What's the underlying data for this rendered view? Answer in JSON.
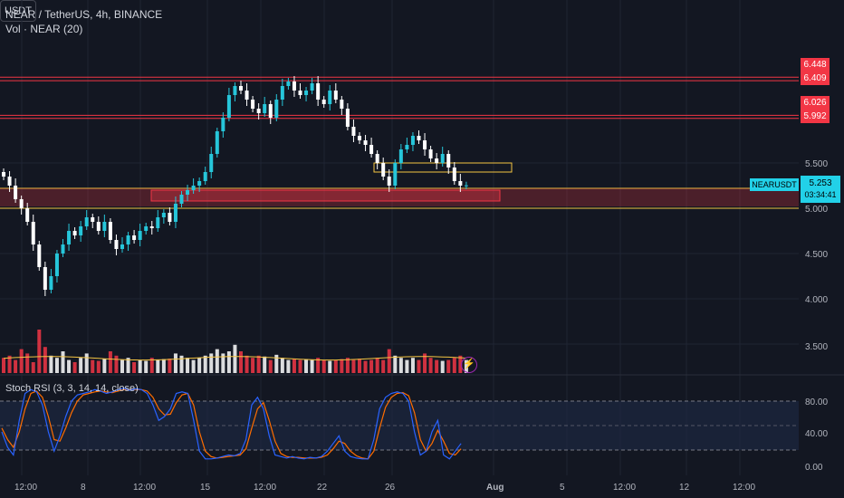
{
  "header": {
    "title": "NEAR / TetherUS, 4h, BINANCE",
    "volume_indicator": "Vol · NEAR (20)",
    "currency_button": "USDT"
  },
  "price_axis": {
    "ticks": [
      "5.500",
      "5.000",
      "4.500",
      "4.000",
      "3.500"
    ],
    "level_tags": [
      "6.448",
      "6.409",
      "6.026",
      "5.992"
    ]
  },
  "last_price": {
    "symbol": "NEARUSDT",
    "price": "5.253",
    "countdown": "03:34:41"
  },
  "stoch_rsi": {
    "label": "Stoch RSI (3, 3, 14, 14, close)",
    "ticks": [
      "80.00",
      "40.00",
      "0.00"
    ]
  },
  "time_axis": {
    "labels": [
      "12:00",
      "8",
      "12:00",
      "15",
      "12:00",
      "22",
      "26",
      "Aug",
      "5",
      "12:00",
      "12",
      "12:00"
    ]
  },
  "colors": {
    "background": "#131722",
    "up": "#26c6da",
    "down": "#ffffff",
    "resistance": "#f23645",
    "zone_yellow": "#f5c542",
    "stoch_k": "#2962ff",
    "stoch_d": "#ff6d00",
    "last_price": "#22d1e8"
  },
  "chart_data": [
    {
      "type": "candlestick",
      "title": "NEAR / TetherUS, 4h, BINANCE",
      "x_labels": [
        "12:00",
        "8",
        "12:00",
        "15",
        "12:00",
        "22",
        "26",
        "Aug",
        "5",
        "12:00",
        "12",
        "12:00"
      ],
      "ylim": [
        3.2,
        6.9
      ],
      "y_ticks": [
        3.5,
        4.0,
        4.5,
        5.0,
        5.5
      ],
      "horizontal_levels": [
        6.448,
        6.409,
        6.026,
        5.992,
        5.22,
        5.0
      ],
      "zones": [
        {
          "low": 5.02,
          "high": 5.22,
          "color": "red"
        },
        {
          "low": 5.08,
          "high": 5.2,
          "color": "red"
        },
        {
          "low": 5.4,
          "high": 5.5,
          "color": "yellow"
        }
      ],
      "close_series": [
        5.35,
        5.25,
        5.1,
        5.0,
        4.85,
        4.6,
        4.35,
        4.1,
        4.25,
        4.5,
        4.6,
        4.75,
        4.7,
        4.8,
        4.9,
        4.85,
        4.75,
        4.85,
        4.65,
        4.55,
        4.6,
        4.7,
        4.65,
        4.75,
        4.8,
        4.78,
        4.9,
        4.95,
        4.85,
        5.05,
        5.15,
        5.2,
        5.25,
        5.3,
        5.4,
        5.6,
        5.85,
        6.0,
        6.25,
        6.35,
        6.3,
        6.2,
        6.1,
        6.05,
        6.15,
        6.0,
        6.2,
        6.35,
        6.4,
        6.3,
        6.25,
        6.3,
        6.38,
        6.2,
        6.15,
        6.3,
        6.2,
        6.1,
        5.9,
        5.8,
        5.75,
        5.7,
        5.6,
        5.5,
        5.35,
        5.25,
        5.5,
        5.65,
        5.7,
        5.8,
        5.75,
        5.65,
        5.55,
        5.5,
        5.6,
        5.45,
        5.3,
        5.25,
        5.253
      ],
      "last_price": 5.253
    },
    {
      "type": "bar",
      "title": "Vol · NEAR (20)",
      "ylim": [
        0,
        1
      ],
      "values": [
        0.35,
        0.4,
        0.3,
        0.55,
        0.45,
        0.25,
        1.0,
        0.6,
        0.4,
        0.35,
        0.5,
        0.3,
        0.25,
        0.35,
        0.45,
        0.3,
        0.28,
        0.33,
        0.5,
        0.4,
        0.3,
        0.35,
        0.25,
        0.3,
        0.28,
        0.35,
        0.3,
        0.32,
        0.33,
        0.45,
        0.4,
        0.35,
        0.3,
        0.35,
        0.4,
        0.45,
        0.55,
        0.45,
        0.5,
        0.65,
        0.5,
        0.4,
        0.35,
        0.4,
        0.38,
        0.3,
        0.42,
        0.35,
        0.3,
        0.33,
        0.3,
        0.32,
        0.3,
        0.35,
        0.3,
        0.28,
        0.3,
        0.32,
        0.35,
        0.3,
        0.33,
        0.28,
        0.3,
        0.35,
        0.3,
        0.55,
        0.4,
        0.35,
        0.3,
        0.35,
        0.3,
        0.45,
        0.35,
        0.3,
        0.28,
        0.3,
        0.35,
        0.4,
        0.3
      ],
      "moving_average": 0.34
    },
    {
      "type": "line",
      "title": "Stoch RSI (3, 3, 14, 14, close)",
      "ylim": [
        0,
        100
      ],
      "y_ticks": [
        80,
        40,
        0
      ],
      "bands": [
        20,
        50,
        80
      ],
      "series": [
        {
          "name": "K",
          "values": [
            40,
            20,
            10,
            55,
            90,
            95,
            92,
            75,
            40,
            15,
            35,
            60,
            80,
            88,
            90,
            92,
            95,
            93,
            90,
            92,
            95,
            97,
            94,
            96,
            95,
            90,
            75,
            55,
            60,
            70,
            90,
            92,
            90,
            55,
            15,
            5,
            5,
            6,
            8,
            10,
            9,
            12,
            30,
            75,
            85,
            70,
            35,
            10,
            8,
            6,
            8,
            6,
            5,
            7,
            6,
            8,
            15,
            25,
            35,
            15,
            8,
            6,
            5,
            5,
            30,
            70,
            85,
            90,
            92,
            90,
            80,
            40,
            10,
            15,
            40,
            55,
            10,
            5,
            15,
            25
          ]
        },
        {
          "name": "D",
          "values": [
            45,
            30,
            20,
            40,
            70,
            90,
            93,
            85,
            60,
            30,
            28,
            45,
            65,
            80,
            88,
            90,
            92,
            93,
            92,
            91,
            93,
            95,
            95,
            95,
            95,
            93,
            85,
            70,
            62,
            63,
            78,
            88,
            90,
            75,
            40,
            15,
            8,
            6,
            7,
            8,
            9,
            10,
            18,
            45,
            70,
            78,
            55,
            28,
            12,
            8,
            7,
            7,
            6,
            6,
            6,
            7,
            10,
            18,
            28,
            25,
            15,
            9,
            6,
            5,
            15,
            45,
            72,
            85,
            90,
            91,
            87,
            65,
            30,
            15,
            25,
            42,
            28,
            12,
            10,
            18
          ]
        }
      ]
    }
  ]
}
